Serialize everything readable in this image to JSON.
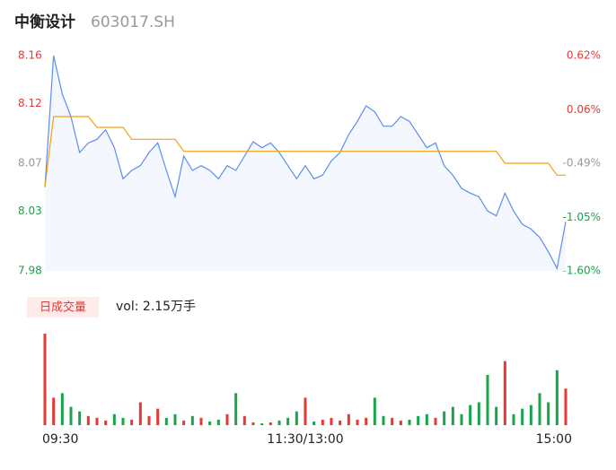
{
  "header": {
    "name": "中衡设计",
    "code": "603017.SH"
  },
  "chart_data": {
    "type": "line",
    "ylim": [
      7.98,
      8.16
    ],
    "yticks": [
      8.16,
      8.12,
      8.07,
      8.03,
      7.98
    ],
    "y2lim": [
      -1.6,
      0.62
    ],
    "y2ticks": [
      {
        "value": 0.62,
        "label": "0.62%"
      },
      {
        "value": 0.06,
        "label": "0.06%"
      },
      {
        "value": -0.49,
        "label": "-0.49%"
      },
      {
        "value": -1.05,
        "label": "-1.05%"
      },
      {
        "value": -1.6,
        "label": "-1.60%"
      }
    ],
    "tick_colors": [
      "#e53935",
      "#e53935",
      "#999999",
      "#1aa34a",
      "#1aa34a"
    ],
    "xlim": [
      0,
      60
    ],
    "xticks": [
      {
        "value": 0,
        "label": "09:30"
      },
      {
        "value": 30,
        "label": "11:30/13:00"
      },
      {
        "value": 60,
        "label": "15:00"
      }
    ],
    "series": [
      {
        "color": "#5b8def",
        "values": [
          8.05,
          8.16,
          8.128,
          8.109,
          8.079,
          8.087,
          8.09,
          8.098,
          8.083,
          8.057,
          8.064,
          8.068,
          8.079,
          8.087,
          8.064,
          8.042,
          8.076,
          8.064,
          8.068,
          8.064,
          8.057,
          8.068,
          8.064,
          8.076,
          8.088,
          8.083,
          8.087,
          8.079,
          8.068,
          8.057,
          8.068,
          8.057,
          8.06,
          8.072,
          8.079,
          8.094,
          8.105,
          8.118,
          8.113,
          8.101,
          8.101,
          8.109,
          8.105,
          8.094,
          8.083,
          8.087,
          8.068,
          8.06,
          8.049,
          8.045,
          8.042,
          8.03,
          8.026,
          8.045,
          8.03,
          8.019,
          8.015,
          8.008,
          7.996,
          7.982,
          8.021
        ]
      },
      {
        "color": "#f0a30a",
        "values": [
          8.05,
          8.109,
          8.109,
          8.109,
          8.109,
          8.109,
          8.1,
          8.1,
          8.1,
          8.1,
          8.09,
          8.09,
          8.09,
          8.09,
          8.09,
          8.09,
          8.08,
          8.08,
          8.08,
          8.08,
          8.08,
          8.08,
          8.08,
          8.08,
          8.08,
          8.08,
          8.08,
          8.08,
          8.08,
          8.08,
          8.08,
          8.08,
          8.08,
          8.08,
          8.08,
          8.08,
          8.08,
          8.08,
          8.08,
          8.08,
          8.08,
          8.08,
          8.08,
          8.08,
          8.08,
          8.08,
          8.08,
          8.08,
          8.08,
          8.08,
          8.08,
          8.08,
          8.08,
          8.07,
          8.07,
          8.07,
          8.07,
          8.07,
          8.07,
          8.06,
          8.06
        ]
      }
    ],
    "volume": {
      "label": "日成交量",
      "text": "vol: 2.15万手",
      "up_color": "#e53935",
      "down_color": "#1aa34a",
      "values": [
        100,
        30,
        35,
        20,
        15,
        10,
        8,
        5,
        12,
        8,
        6,
        25,
        10,
        18,
        8,
        12,
        5,
        10,
        8,
        4,
        6,
        12,
        35,
        10,
        3,
        2,
        3,
        5,
        8,
        15,
        30,
        4,
        6,
        8,
        5,
        12,
        6,
        8,
        30,
        10,
        8,
        5,
        6,
        10,
        12,
        8,
        15,
        20,
        12,
        22,
        25,
        55,
        20,
        70,
        12,
        18,
        22,
        35,
        25,
        60,
        40
      ]
    }
  }
}
